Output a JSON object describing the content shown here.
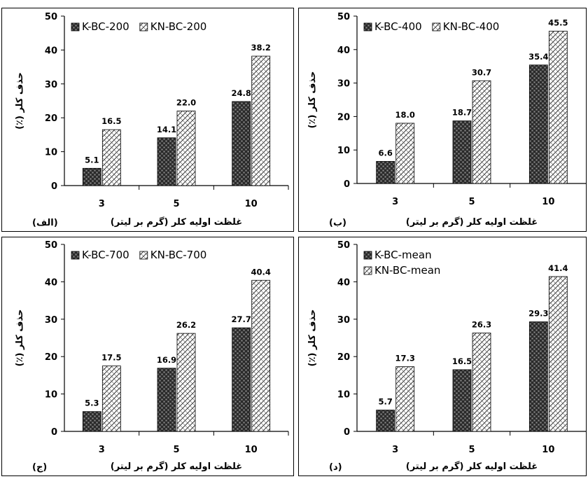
{
  "chart_data": [
    {
      "type": "bar",
      "panel_label": "(الف)",
      "categories": [
        "3",
        "5",
        "10"
      ],
      "series": [
        {
          "name": "K-BC-200",
          "values": [
            5.1,
            14.1,
            24.8
          ],
          "labels": [
            "5.1",
            "14.1",
            "24.8"
          ]
        },
        {
          "name": "KN-BC-200",
          "values": [
            16.5,
            22.0,
            38.2
          ],
          "labels": [
            "16.5",
            "22.0",
            "38.2"
          ]
        }
      ],
      "xlabel": "غلظت اولیه کلر (گرم بر لیتر)",
      "ylabel": "حذف کلر (٪)",
      "ylim": [
        0,
        50
      ],
      "yticks": [
        "0",
        "10",
        "20",
        "30",
        "40",
        "50"
      ],
      "legend": "top-left, one row",
      "grid": false
    },
    {
      "type": "bar",
      "panel_label": "(ب)",
      "categories": [
        "3",
        "5",
        "10"
      ],
      "series": [
        {
          "name": "K-BC-400",
          "values": [
            6.6,
            18.7,
            35.4
          ],
          "labels": [
            "6.6",
            "18.7",
            "35.4"
          ]
        },
        {
          "name": "KN-BC-400",
          "values": [
            18.0,
            30.7,
            45.5
          ],
          "labels": [
            "18.0",
            "30.7",
            "45.5"
          ]
        }
      ],
      "xlabel": "غلظت اولیه کلر (گرم بر لیتر)",
      "ylabel": "حذف کلر (٪)",
      "ylim": [
        0,
        50
      ],
      "yticks": [
        "0",
        "10",
        "20",
        "30",
        "40",
        "50"
      ],
      "legend": "top-left, one row",
      "grid": false
    },
    {
      "type": "bar",
      "panel_label": "(ج)",
      "categories": [
        "3",
        "5",
        "10"
      ],
      "series": [
        {
          "name": "K-BC-700",
          "values": [
            5.3,
            16.9,
            27.7
          ],
          "labels": [
            "5.3",
            "16.9",
            "27.7"
          ]
        },
        {
          "name": "KN-BC-700",
          "values": [
            17.5,
            26.2,
            40.4
          ],
          "labels": [
            "17.5",
            "26.2",
            "40.4"
          ]
        }
      ],
      "xlabel": "غلظت اولیه کلر (گرم بر لیتر)",
      "ylabel": "حذف کلر (٪)",
      "ylim": [
        0,
        50
      ],
      "yticks": [
        "0",
        "10",
        "20",
        "30",
        "40",
        "50"
      ],
      "legend": "top-left, one row",
      "grid": false
    },
    {
      "type": "bar",
      "panel_label": "(د)",
      "categories": [
        "3",
        "5",
        "10"
      ],
      "series": [
        {
          "name": "K-BC-mean",
          "values": [
            5.7,
            16.5,
            29.3
          ],
          "labels": [
            "5.7",
            "16.5",
            "29.3"
          ]
        },
        {
          "name": "KN-BC-mean",
          "values": [
            17.3,
            26.3,
            41.4
          ],
          "labels": [
            "17.3",
            "26.3",
            "41.4"
          ]
        }
      ],
      "xlabel": "غلظت اولیه کلر (گرم بر لیتر)",
      "ylabel": "حذف کلر (٪)",
      "ylim": [
        0,
        50
      ],
      "yticks": [
        "0",
        "10",
        "20",
        "30",
        "40",
        "50"
      ],
      "legend": "top-left, stacked",
      "grid": false
    }
  ],
  "colors": {
    "k_series_fill": "#3a3a3a",
    "k_series_pattern": "#1a1a1a",
    "kn_series_fill": "#ffffff",
    "kn_series_hatch": "#222222",
    "frame": "#000000"
  }
}
